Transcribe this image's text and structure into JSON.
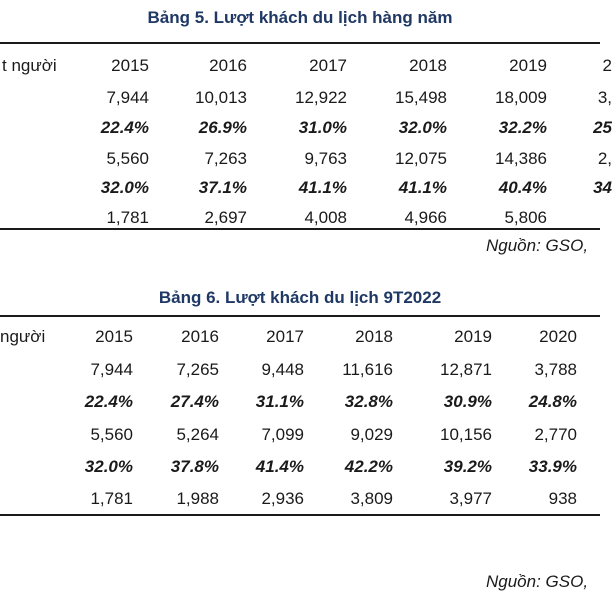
{
  "table5": {
    "title": "Bảng 5. Lượt khách du lịch hàng năm",
    "header_label": "t người",
    "years": [
      "2015",
      "2016",
      "2017",
      "2018",
      "2019",
      "2"
    ],
    "rows": [
      {
        "type": "num",
        "values": [
          "7,944",
          "10,013",
          "12,922",
          "15,498",
          "18,009",
          "3,"
        ]
      },
      {
        "type": "pct",
        "values": [
          "22.4%",
          "26.9%",
          "31.0%",
          "32.0%",
          "32.2%",
          "25"
        ]
      },
      {
        "type": "num",
        "values": [
          "5,560",
          "7,263",
          "9,763",
          "12,075",
          "14,386",
          "2,"
        ]
      },
      {
        "type": "pct",
        "values": [
          "32.0%",
          "37.1%",
          "41.1%",
          "41.1%",
          "40.4%",
          "34"
        ]
      },
      {
        "type": "num",
        "values": [
          "1,781",
          "2,697",
          "4,008",
          "4,966",
          "5,806",
          ""
        ]
      }
    ],
    "source": "Nguồn: GSO,"
  },
  "table6": {
    "title": "Bảng 6. Lượt khách du lịch 9T2022",
    "header_label": "người",
    "years": [
      "2015",
      "2016",
      "2017",
      "2018",
      "2019",
      "2020"
    ],
    "rows": [
      {
        "type": "num",
        "values": [
          "7,944",
          "7,265",
          "9,448",
          "11,616",
          "12,871",
          "3,788"
        ]
      },
      {
        "type": "pct",
        "values": [
          "22.4%",
          "27.4%",
          "31.1%",
          "32.8%",
          "30.9%",
          "24.8%"
        ]
      },
      {
        "type": "num",
        "values": [
          "5,560",
          "5,264",
          "7,099",
          "9,029",
          "10,156",
          "2,770"
        ]
      },
      {
        "type": "pct",
        "values": [
          "32.0%",
          "37.8%",
          "41.4%",
          "42.2%",
          "39.2%",
          "33.9%"
        ]
      },
      {
        "type": "num",
        "values": [
          "1,781",
          "1,988",
          "2,936",
          "3,809",
          "3,977",
          "938"
        ]
      }
    ],
    "source": "Nguồn: GSO,"
  }
}
